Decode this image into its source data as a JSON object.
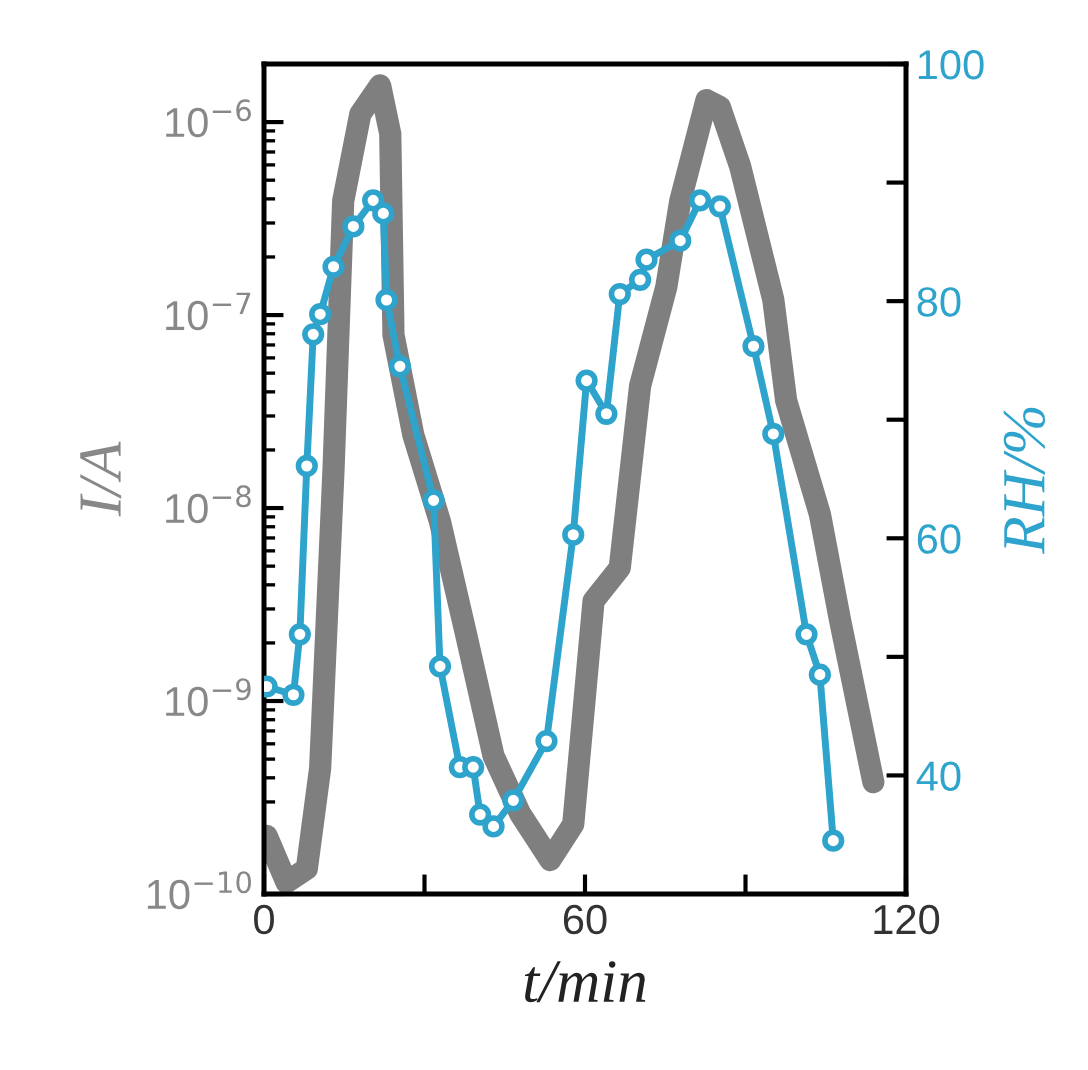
{
  "chart_data": {
    "type": "line",
    "xlabel": "t/min",
    "ylabel": "I/A",
    "y2label": "RH/%",
    "log": "y",
    "grid": false,
    "legend": false,
    "xlim": [
      0,
      120
    ],
    "xticks": [
      0,
      {
        "value": 30,
        "label": null
      },
      60,
      {
        "value": 90,
        "label": null
      },
      120
    ],
    "ylim": [
      1e-10,
      2e-06
    ],
    "yticks": [
      {
        "value": 1e-10,
        "label": "10$^{−10}$"
      },
      {
        "value": 1e-09,
        "label": "10$^{−9}$"
      },
      {
        "value": 1e-08,
        "label": "10$^{−8}$"
      },
      {
        "value": 1e-07,
        "label": "10$^{−7}$"
      },
      {
        "value": 1e-06,
        "label": "10$^{−6}$"
      }
    ],
    "y2lim": [
      30,
      100
    ],
    "y2ticks": [
      40,
      {
        "value": 50,
        "label": null
      },
      60,
      {
        "value": 70,
        "label": null
      },
      80,
      {
        "value": 90,
        "label": null
      },
      100
    ],
    "series": [
      {
        "color": "#7f7f7f",
        "marker": "none",
        "x": [
          0.5,
          4.2,
          8,
          10.5,
          13,
          14.8,
          18,
          21.7,
          23.6,
          24.2,
          27.9,
          32.9,
          37.8,
          42.9,
          47.9,
          53.5,
          57.8,
          61.6,
          66.5,
          70.3,
          75.2,
          77.8,
          82.7,
          85.2,
          89,
          95.2,
          97.6,
          103.9,
          107.7,
          113.9
        ],
        "values": [
          2e-10,
          1.15e-10,
          1.35e-10,
          4.5e-10,
          1.6e-08,
          3.9e-07,
          1.1e-06,
          1.55e-06,
          8.7e-07,
          7.9e-08,
          2.4e-08,
          8.5e-09,
          2.2e-09,
          5.2e-10,
          2.6e-10,
          1.5e-10,
          2.3e-10,
          3.3e-09,
          4.9e-09,
          4.3e-08,
          1.4e-07,
          3.9e-07,
          1.3e-06,
          1.2e-06,
          5.9e-07,
          1.2e-07,
          3.6e-08,
          9.3e-09,
          2.6e-09,
          3.8e-10
        ]
      },
      {
        "color": "#2ea3cc",
        "marker": "circle",
        "axis": "y2",
        "x": [
          0.5,
          5.5,
          6.7,
          8,
          9.2,
          10.5,
          13,
          16.7,
          20.4,
          22.3,
          22.9,
          25.4,
          31.7,
          32.9,
          36.6,
          39.1,
          40.4,
          42.9,
          46.6,
          52.8,
          57.8,
          60.3,
          64,
          66.5,
          70.3,
          71.5,
          77.8,
          81.5,
          85.2,
          91.5,
          95.2,
          101.4,
          103.9,
          106.4
        ],
        "values": [
          47.5,
          46.8,
          51.9,
          66.1,
          77.2,
          78.9,
          82.9,
          86.3,
          88.5,
          87.4,
          80.1,
          74.5,
          63.2,
          49.2,
          40.7,
          40.7,
          36.7,
          35.7,
          37.9,
          42.9,
          60.3,
          73.3,
          70.5,
          80.6,
          81.8,
          83.5,
          85.1,
          88.5,
          88,
          76.2,
          68.8,
          51.9,
          48.5,
          34.5
        ]
      }
    ]
  }
}
